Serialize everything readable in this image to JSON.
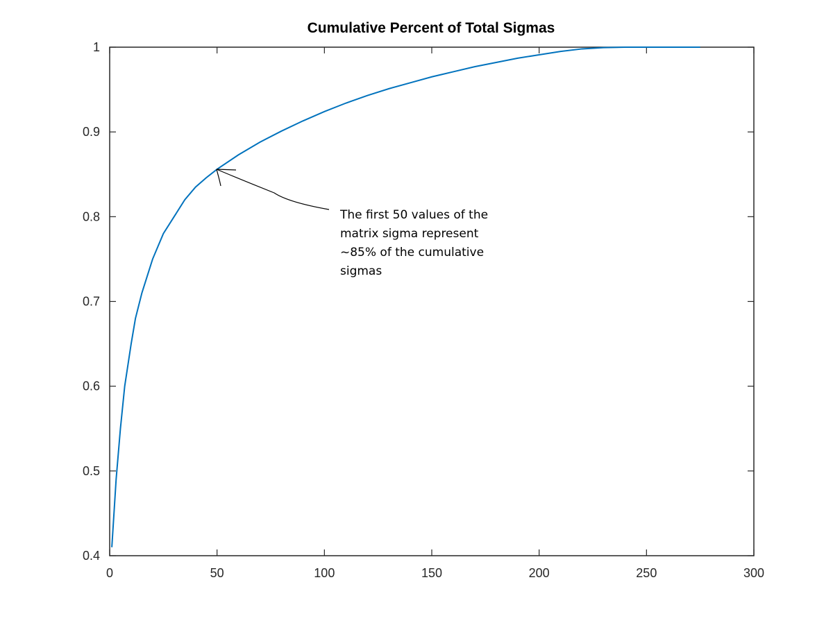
{
  "chart_data": {
    "type": "line",
    "title": "Cumulative Percent of Total Sigmas",
    "xlabel": "",
    "ylabel": "",
    "xlim": [
      0,
      300
    ],
    "ylim": [
      0.4,
      1
    ],
    "xticks": [
      0,
      50,
      100,
      150,
      200,
      250,
      300
    ],
    "yticks": [
      0.4,
      0.5,
      0.6,
      0.7,
      0.8,
      0.9,
      1
    ],
    "xtick_labels": [
      "0",
      "50",
      "100",
      "150",
      "200",
      "250",
      "300"
    ],
    "ytick_labels": [
      "0.4",
      "0.5",
      "0.6",
      "0.7",
      "0.8",
      "0.9",
      "1"
    ],
    "grid": false,
    "series": [
      {
        "color": "#0072BD",
        "x": [
          1,
          2,
          3,
          5,
          7,
          10,
          12,
          15,
          20,
          25,
          30,
          35,
          40,
          45,
          50,
          60,
          70,
          80,
          90,
          100,
          110,
          120,
          130,
          140,
          150,
          160,
          170,
          180,
          190,
          200,
          210,
          220,
          230,
          240,
          250,
          260,
          270,
          275
        ],
        "y": [
          0.41,
          0.45,
          0.49,
          0.55,
          0.6,
          0.65,
          0.68,
          0.71,
          0.75,
          0.78,
          0.8,
          0.82,
          0.835,
          0.846,
          0.856,
          0.873,
          0.888,
          0.901,
          0.913,
          0.924,
          0.934,
          0.943,
          0.951,
          0.958,
          0.965,
          0.971,
          0.977,
          0.982,
          0.987,
          0.991,
          0.995,
          0.998,
          0.9995,
          1,
          1,
          1,
          1,
          1
        ]
      }
    ],
    "annotation": {
      "lines": [
        "The first 50 values of the",
        "matrix sigma represent",
        "~85% of the cumulative",
        "sigmas"
      ],
      "arrow_to": {
        "x": 50,
        "y": 0.856
      }
    }
  }
}
